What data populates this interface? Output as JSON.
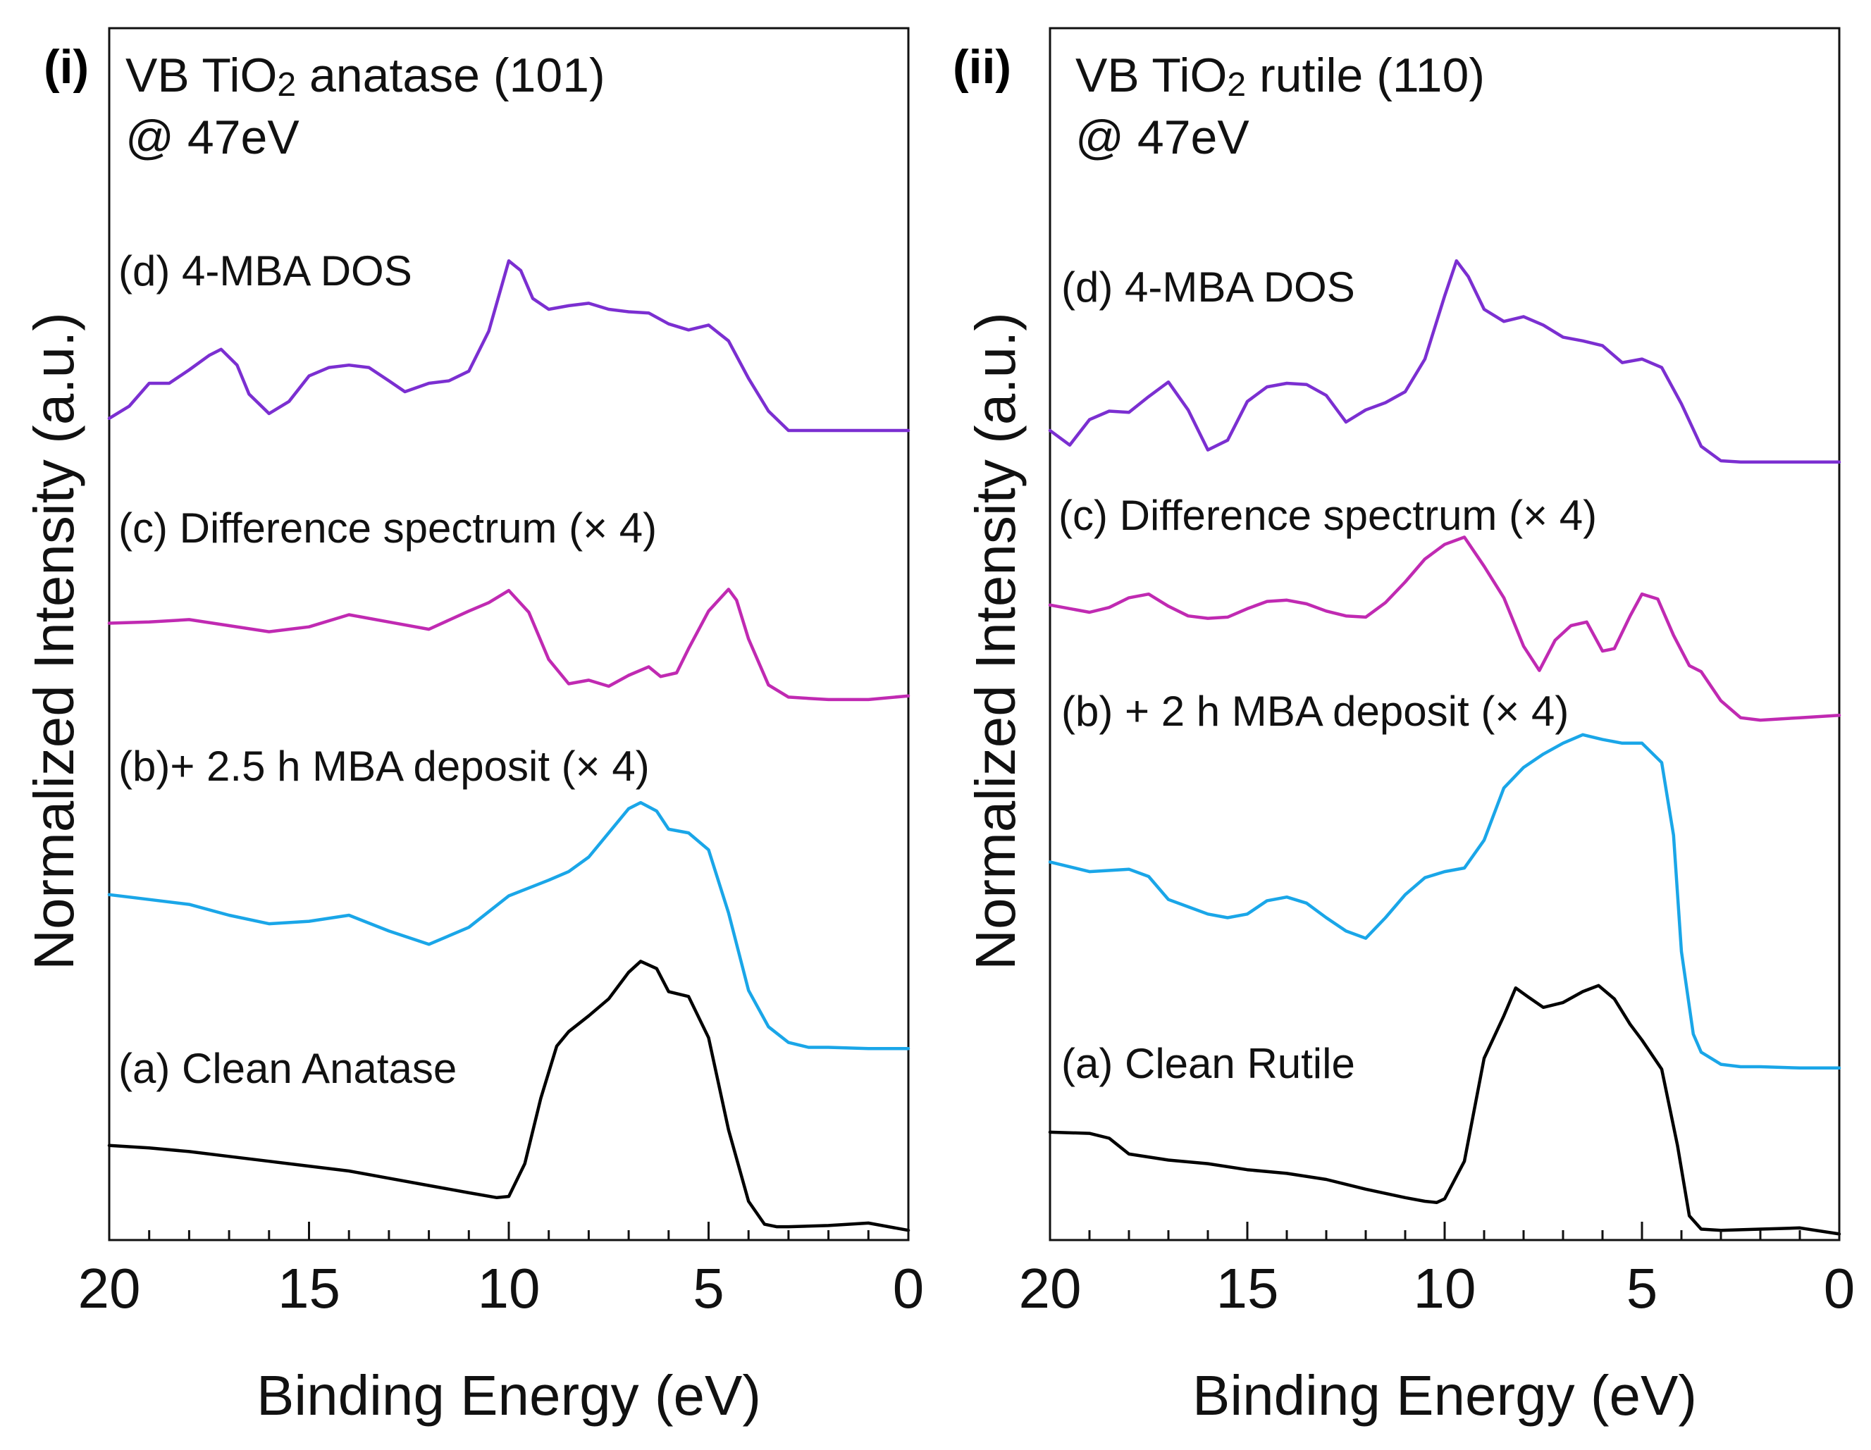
{
  "figure": {
    "ylabel": "Normalized Intensity (a.u.)",
    "xlabel": "Binding Energy (eV)"
  },
  "chart_data": [
    {
      "type": "line",
      "panel_label": "(i)",
      "title_line1_pre": "VB TiO",
      "title_sub": "2",
      "title_line1_post": " anatase (101)",
      "title_line2": "@ 47eV",
      "xlabel": "Binding Energy (eV)",
      "ylabel": "Normalized Intensity (a.u.)",
      "xlim": [
        20,
        0
      ],
      "ylim": [
        0,
        1
      ],
      "xticks": [
        20,
        15,
        10,
        5,
        0
      ],
      "xtick_labels": [
        "20",
        "15",
        "10",
        "5",
        "0"
      ],
      "series": [
        {
          "name": "(d) 4-MBA DOS",
          "label": "(d) 4-MBA DOS",
          "color": "#7b2fd1",
          "x": [
            20,
            19.5,
            19,
            18.5,
            18,
            17.5,
            17.2,
            16.8,
            16.5,
            16,
            15.5,
            15,
            14.5,
            14,
            13.5,
            13,
            12.6,
            12,
            11.5,
            11,
            10.5,
            10,
            9.7,
            9.4,
            9,
            8.5,
            8,
            7.5,
            7,
            6.5,
            6,
            5.5,
            5,
            4.5,
            4,
            3.5,
            3,
            2.5,
            2,
            1.5,
            1,
            0.5,
            0
          ],
          "y": [
            0.678,
            0.688,
            0.707,
            0.707,
            0.718,
            0.73,
            0.735,
            0.722,
            0.698,
            0.682,
            0.692,
            0.713,
            0.72,
            0.722,
            0.72,
            0.709,
            0.7,
            0.707,
            0.709,
            0.717,
            0.75,
            0.808,
            0.8,
            0.777,
            0.768,
            0.771,
            0.773,
            0.768,
            0.766,
            0.765,
            0.756,
            0.751,
            0.755,
            0.742,
            0.711,
            0.684,
            0.668,
            0.668,
            0.668,
            0.668,
            0.668,
            0.668,
            0.668
          ]
        },
        {
          "name": "(c) Difference spectrum (× 4)",
          "label": "(c) Difference spectrum (× 4)",
          "color": "#c02ab2",
          "x": [
            20,
            19,
            18,
            17,
            16,
            15,
            14,
            13,
            12,
            11,
            10.5,
            10,
            9.5,
            9,
            8.5,
            8,
            7.5,
            7,
            6.5,
            6.2,
            5.8,
            5.5,
            5,
            4.5,
            4.3,
            4,
            3.5,
            3,
            2.5,
            2,
            1,
            0
          ],
          "y": [
            0.509,
            0.51,
            0.512,
            0.507,
            0.502,
            0.506,
            0.516,
            0.51,
            0.504,
            0.519,
            0.526,
            0.536,
            0.518,
            0.479,
            0.459,
            0.462,
            0.457,
            0.466,
            0.473,
            0.465,
            0.468,
            0.488,
            0.519,
            0.537,
            0.528,
            0.496,
            0.458,
            0.448,
            0.447,
            0.446,
            0.446,
            0.449
          ]
        },
        {
          "name": "(b)+ 2.5 h MBA deposit (× 4)",
          "label": "(b)+ 2.5 h MBA deposit (× 4)",
          "color": "#1aa6e8",
          "x": [
            20,
            19,
            18,
            17,
            16,
            15,
            14,
            13,
            12,
            11,
            10,
            9,
            8.5,
            8,
            7.5,
            7,
            6.7,
            6.3,
            6,
            5.5,
            5,
            4.5,
            4,
            3.5,
            3,
            2.5,
            2,
            1,
            0
          ],
          "y": [
            0.285,
            0.281,
            0.277,
            0.268,
            0.261,
            0.263,
            0.268,
            0.255,
            0.244,
            0.258,
            0.284,
            0.297,
            0.304,
            0.316,
            0.336,
            0.356,
            0.361,
            0.354,
            0.339,
            0.336,
            0.322,
            0.27,
            0.206,
            0.176,
            0.163,
            0.159,
            0.159,
            0.158,
            0.158
          ]
        },
        {
          "name": "(a) Clean Anatase",
          "label": "(a) Clean Anatase",
          "color": "#000000",
          "x": [
            20,
            19,
            18,
            17,
            16,
            15,
            14,
            13,
            12,
            11,
            10.3,
            10,
            9.6,
            9.2,
            8.8,
            8.5,
            8,
            7.5,
            7,
            6.7,
            6.3,
            6,
            5.5,
            5,
            4.5,
            4,
            3.6,
            3.3,
            3,
            2,
            1,
            0
          ],
          "y": [
            0.078,
            0.076,
            0.073,
            0.069,
            0.065,
            0.061,
            0.057,
            0.051,
            0.045,
            0.039,
            0.035,
            0.036,
            0.063,
            0.117,
            0.16,
            0.172,
            0.185,
            0.199,
            0.221,
            0.23,
            0.224,
            0.205,
            0.201,
            0.167,
            0.091,
            0.032,
            0.013,
            0.011,
            0.011,
            0.012,
            0.014,
            0.008
          ]
        }
      ]
    },
    {
      "type": "line",
      "panel_label": "(ii)",
      "title_line1_pre": "VB TiO",
      "title_sub": "2",
      "title_line1_post": " rutile (110)",
      "title_line2": "@ 47eV",
      "xlabel": "Binding Energy (eV)",
      "ylabel": "Normalized Intensity (a.u.)",
      "xlim": [
        20,
        0
      ],
      "ylim": [
        0,
        1
      ],
      "xticks": [
        20,
        15,
        10,
        5,
        0
      ],
      "xtick_labels": [
        "20",
        "15",
        "10",
        "5",
        "0"
      ],
      "series": [
        {
          "name": "(d) 4-MBA DOS",
          "label": "(d) 4-MBA DOS",
          "color": "#7b2fd1",
          "x": [
            20,
            19.5,
            19,
            18.5,
            18,
            17.5,
            17,
            16.5,
            16,
            15.5,
            15,
            14.5,
            14,
            13.5,
            13,
            12.5,
            12,
            11.5,
            11,
            10.5,
            10,
            9.7,
            9.4,
            9,
            8.5,
            8,
            7.5,
            7,
            6.5,
            6,
            5.5,
            5,
            4.5,
            4,
            3.5,
            3,
            2.5,
            2,
            1,
            0
          ],
          "y": [
            0.668,
            0.656,
            0.677,
            0.684,
            0.683,
            0.696,
            0.708,
            0.685,
            0.652,
            0.66,
            0.692,
            0.704,
            0.707,
            0.706,
            0.697,
            0.675,
            0.685,
            0.691,
            0.7,
            0.727,
            0.779,
            0.808,
            0.795,
            0.768,
            0.758,
            0.762,
            0.755,
            0.745,
            0.742,
            0.738,
            0.724,
            0.727,
            0.72,
            0.69,
            0.655,
            0.643,
            0.642,
            0.642,
            0.642,
            0.642
          ]
        },
        {
          "name": "(c) Difference spectrum (× 4)",
          "label": "(c) Difference spectrum (× 4)",
          "color": "#c02ab2",
          "x": [
            20,
            19,
            18.5,
            18,
            17.5,
            17,
            16.5,
            16,
            15.5,
            15,
            14.5,
            14,
            13.5,
            13,
            12.5,
            12,
            11.5,
            11,
            10.5,
            10,
            9.5,
            9,
            8.5,
            8,
            7.6,
            7.2,
            6.8,
            6.4,
            6,
            5.7,
            5.3,
            5,
            4.6,
            4.2,
            3.8,
            3.5,
            3,
            2.5,
            2,
            1,
            0
          ],
          "y": [
            0.524,
            0.518,
            0.522,
            0.53,
            0.533,
            0.523,
            0.515,
            0.513,
            0.514,
            0.521,
            0.527,
            0.528,
            0.525,
            0.519,
            0.515,
            0.514,
            0.526,
            0.543,
            0.562,
            0.574,
            0.58,
            0.556,
            0.53,
            0.49,
            0.47,
            0.495,
            0.507,
            0.51,
            0.486,
            0.488,
            0.515,
            0.533,
            0.529,
            0.499,
            0.474,
            0.469,
            0.445,
            0.431,
            0.429,
            0.431,
            0.433
          ]
        },
        {
          "name": "(b) + 2 h MBA deposit (× 4)",
          "label": "(b) + 2 h MBA deposit (× 4)",
          "color": "#1aa6e8",
          "x": [
            20,
            19,
            18,
            17.5,
            17,
            16.5,
            16,
            15.5,
            15,
            14.5,
            14,
            13.5,
            13,
            12.5,
            12,
            11.5,
            11,
            10.5,
            10,
            9.5,
            9,
            8.5,
            8,
            7.5,
            7,
            6.5,
            6,
            5.5,
            5,
            4.5,
            4.2,
            4,
            3.7,
            3.5,
            3,
            2.5,
            2,
            1,
            0
          ],
          "y": [
            0.312,
            0.304,
            0.306,
            0.3,
            0.281,
            0.275,
            0.269,
            0.266,
            0.269,
            0.28,
            0.283,
            0.278,
            0.266,
            0.255,
            0.249,
            0.266,
            0.285,
            0.299,
            0.304,
            0.307,
            0.33,
            0.373,
            0.39,
            0.401,
            0.41,
            0.417,
            0.413,
            0.41,
            0.41,
            0.394,
            0.334,
            0.238,
            0.17,
            0.155,
            0.145,
            0.143,
            0.143,
            0.142,
            0.142
          ]
        },
        {
          "name": "(a) Clean Rutile",
          "label": "(a) Clean Rutile",
          "color": "#000000",
          "x": [
            20,
            19,
            18.5,
            18,
            17,
            16,
            15,
            14,
            13,
            12,
            11,
            10.5,
            10.2,
            10,
            9.5,
            9,
            8.5,
            8.2,
            7.9,
            7.5,
            7,
            6.5,
            6.1,
            5.7,
            5.3,
            5,
            4.5,
            4.1,
            3.8,
            3.5,
            3,
            2,
            1,
            0
          ],
          "y": [
            0.089,
            0.088,
            0.084,
            0.071,
            0.066,
            0.063,
            0.058,
            0.055,
            0.05,
            0.042,
            0.035,
            0.032,
            0.031,
            0.034,
            0.065,
            0.15,
            0.185,
            0.208,
            0.201,
            0.192,
            0.196,
            0.205,
            0.21,
            0.199,
            0.178,
            0.165,
            0.141,
            0.078,
            0.02,
            0.009,
            0.008,
            0.009,
            0.01,
            0.005
          ]
        }
      ]
    }
  ]
}
